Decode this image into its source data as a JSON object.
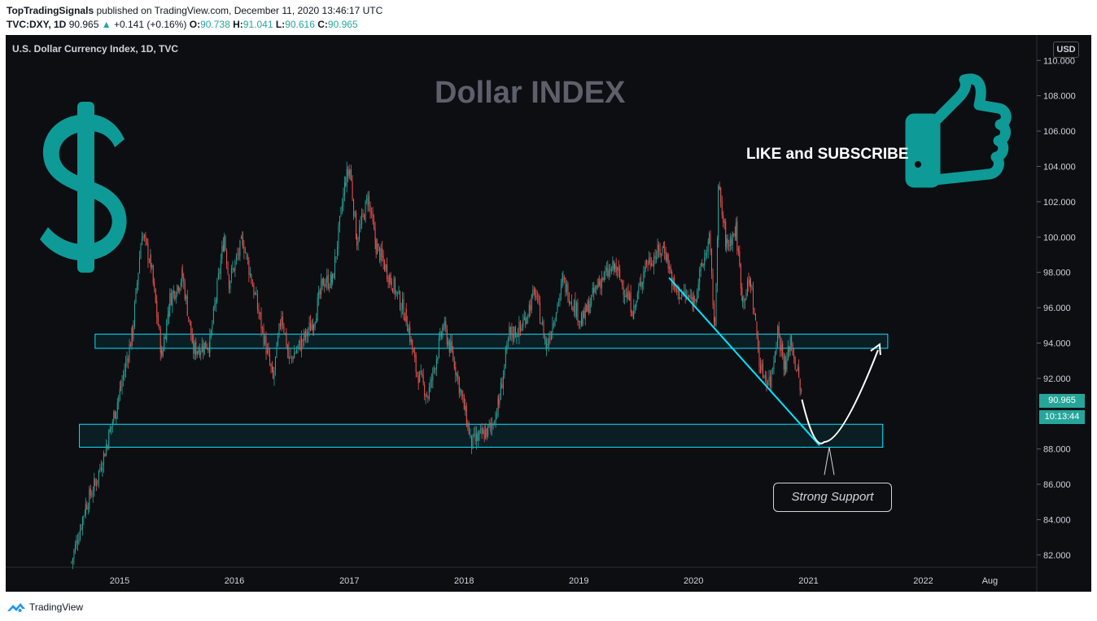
{
  "header": {
    "author": "TopTradingSignals",
    "published": "published on TradingView.com, December 11, 2020 13:46:17 UTC",
    "symbol": "TVC:DXY, 1D",
    "last": "90.965",
    "arrow": "▲",
    "change": "+0.141 (+0.16%)",
    "o_label": "O:",
    "o_val": "90.738",
    "h_label": "H:",
    "h_val": "91.041",
    "l_label": "L:",
    "l_val": "90.616",
    "c_label": "C:",
    "c_val": "90.965"
  },
  "chart": {
    "symbol_title": "U.S. Dollar Currency Index, 1D, TVC",
    "big_title": "Dollar INDEX",
    "like_text": "LIKE and SUBSCRIBE",
    "currency": "USD",
    "price_tag": "90.965",
    "countdown": "10:13:44",
    "support_label": "Strong Support",
    "y_ticks": [
      "110.000",
      "108.000",
      "106.000",
      "104.000",
      "102.000",
      "100.000",
      "98.000",
      "96.000",
      "94.000",
      "92.000",
      "88.000",
      "86.000",
      "84.000",
      "82.000"
    ],
    "x_ticks": [
      "2015",
      "2016",
      "2017",
      "2018",
      "2019",
      "2020",
      "2021",
      "2022",
      "Aug"
    ],
    "colors": {
      "up": "#26a69a",
      "down": "#ef5350",
      "accent": "#00e5ff",
      "dollar": "#0e9a97"
    },
    "icons": [
      "dollar-icon",
      "thumbs-up-icon",
      "tradingview-logo-icon"
    ]
  },
  "chart_data": {
    "type": "candlestick",
    "ylim": [
      81.5,
      111.5
    ],
    "price_series": [
      [
        "2014-08-01",
        81.6
      ],
      [
        "2014-09-15",
        84.8
      ],
      [
        "2014-10-15",
        86.0
      ],
      [
        "2014-11-20",
        88.2
      ],
      [
        "2015-01-05",
        91.5
      ],
      [
        "2015-02-10",
        94.5
      ],
      [
        "2015-03-13",
        100.3
      ],
      [
        "2015-04-10",
        98.5
      ],
      [
        "2015-05-15",
        93.3
      ],
      [
        "2015-06-10",
        96.5
      ],
      [
        "2015-07-20",
        97.8
      ],
      [
        "2015-08-24",
        93.6
      ],
      [
        "2015-10-15",
        94.0
      ],
      [
        "2015-11-30",
        100.1
      ],
      [
        "2015-12-15",
        97.5
      ],
      [
        "2016-01-28",
        99.8
      ],
      [
        "2016-03-15",
        96.0
      ],
      [
        "2016-05-03",
        91.9
      ],
      [
        "2016-05-30",
        95.7
      ],
      [
        "2016-06-24",
        93.0
      ],
      [
        "2016-08-15",
        94.4
      ],
      [
        "2016-09-10",
        95.3
      ],
      [
        "2016-10-10",
        97.5
      ],
      [
        "2016-11-08",
        97.5
      ],
      [
        "2016-12-20",
        103.3
      ],
      [
        "2017-01-03",
        103.8
      ],
      [
        "2017-01-25",
        99.8
      ],
      [
        "2017-03-01",
        102.2
      ],
      [
        "2017-03-27",
        99.5
      ],
      [
        "2017-05-15",
        97.5
      ],
      [
        "2017-07-01",
        95.5
      ],
      [
        "2017-08-01",
        92.5
      ],
      [
        "2017-09-08",
        91.0
      ],
      [
        "2017-10-27",
        95.0
      ],
      [
        "2017-12-01",
        92.9
      ],
      [
        "2018-01-25",
        88.3
      ],
      [
        "2018-02-15",
        88.6
      ],
      [
        "2018-03-27",
        89.2
      ],
      [
        "2018-04-20",
        90.5
      ],
      [
        "2018-05-25",
        94.5
      ],
      [
        "2018-06-30",
        94.8
      ],
      [
        "2018-08-15",
        96.9
      ],
      [
        "2018-09-20",
        93.8
      ],
      [
        "2018-11-12",
        97.5
      ],
      [
        "2019-01-10",
        95.2
      ],
      [
        "2019-03-07",
        97.5
      ],
      [
        "2019-04-26",
        98.3
      ],
      [
        "2019-06-25",
        95.8
      ],
      [
        "2019-08-01",
        98.5
      ],
      [
        "2019-10-01",
        99.4
      ],
      [
        "2019-11-01",
        97.0
      ],
      [
        "2020-01-01",
        96.4
      ],
      [
        "2020-02-20",
        99.9
      ],
      [
        "2020-03-09",
        94.6
      ],
      [
        "2020-03-20",
        102.8
      ],
      [
        "2020-04-15",
        99.5
      ],
      [
        "2020-05-15",
        100.4
      ],
      [
        "2020-06-05",
        96.5
      ],
      [
        "2020-07-01",
        97.5
      ],
      [
        "2020-08-01",
        92.5
      ],
      [
        "2020-09-01",
        91.8
      ],
      [
        "2020-09-25",
        94.7
      ],
      [
        "2020-10-20",
        92.5
      ],
      [
        "2020-11-04",
        94.3
      ],
      [
        "2020-12-11",
        90.97
      ]
    ],
    "zones": [
      {
        "from": "2014-10-15",
        "to": "2021-09-10",
        "low": 93.7,
        "high": 94.5
      },
      {
        "from": "2014-08-26",
        "to": "2021-08-25",
        "low": 88.1,
        "high": 89.4
      }
    ],
    "trendline": {
      "from": [
        "2019-10-15",
        97.7
      ],
      "to": [
        "2021-02-05",
        88.2
      ]
    },
    "projection": {
      "from": [
        "2020-12-11",
        90.8
      ],
      "via": [
        "2021-02-20",
        88.4
      ],
      "to": [
        "2021-08-10",
        93.6
      ]
    }
  }
}
